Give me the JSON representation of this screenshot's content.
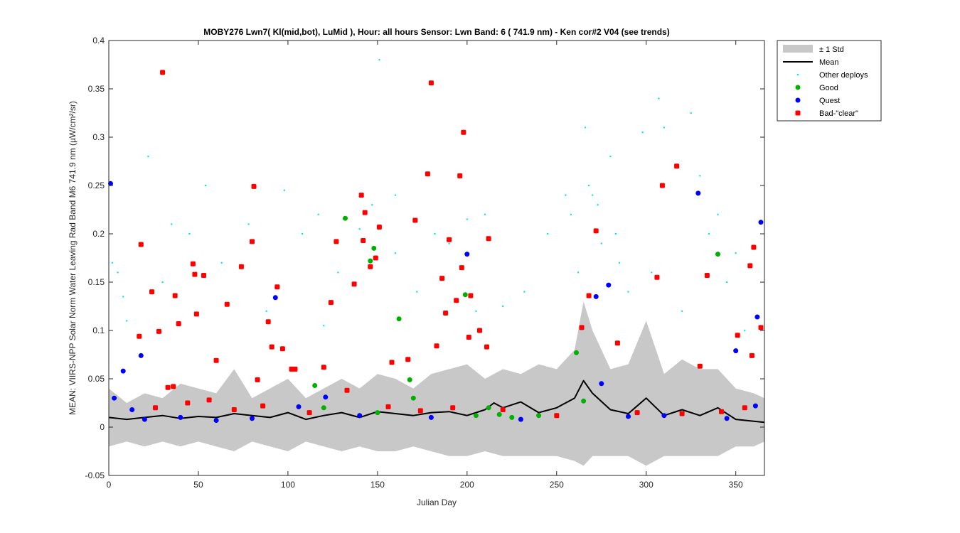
{
  "chart_data": {
    "type": "scatter",
    "title": "MOBY276   Lwn7( Kl(mid,bot), LuMid ),   Hour: all hours  Sensor: Lwn Band: 6 ( 741.9 nm)  - Ken cor#2 V04 (see trends)",
    "xlabel": "Julian Day",
    "ylabel": "MEAN: VIIRS-NPP Solar Norm Water Leaving Rad Band M6 741.9 nm (µW/cm²/sr)",
    "xlim": [
      0,
      366
    ],
    "ylim": [
      -0.05,
      0.4
    ],
    "xticks": [
      0,
      50,
      100,
      150,
      200,
      250,
      300,
      350
    ],
    "xtick_labels": [
      "0",
      "50",
      "100",
      "150",
      "200",
      "250",
      "300",
      "350"
    ],
    "yticks": [
      -0.05,
      0,
      0.05,
      0.1,
      0.15,
      0.2,
      0.25,
      0.3,
      0.35,
      0.4
    ],
    "ytick_labels": [
      "-0.05",
      "0",
      "0.05",
      "0.1",
      "0.15",
      "0.2",
      "0.25",
      "0.3",
      "0.35",
      "0.4"
    ],
    "legend_position": "outside-top-right",
    "legend": [
      "± 1 Std",
      "Mean",
      "Other deploys",
      "Good",
      "Quest",
      "Bad-\"clear\""
    ],
    "colors": {
      "std": "#c8c8c8",
      "mean": "#000000",
      "other": "#00e5e5",
      "good": "#00b000",
      "quest": "#0000ff",
      "bad": "#ff0000"
    },
    "series": [
      {
        "name": "± 1 Std",
        "kind": "band",
        "x": [
          0,
          10,
          20,
          30,
          40,
          50,
          60,
          70,
          80,
          90,
          100,
          110,
          120,
          130,
          140,
          150,
          160,
          170,
          180,
          190,
          200,
          210,
          220,
          230,
          240,
          250,
          260,
          265,
          270,
          280,
          290,
          300,
          310,
          320,
          330,
          340,
          350,
          360,
          366
        ],
        "upper": [
          0.04,
          0.025,
          0.035,
          0.03,
          0.045,
          0.04,
          0.035,
          0.06,
          0.03,
          0.04,
          0.05,
          0.03,
          0.04,
          0.05,
          0.04,
          0.055,
          0.05,
          0.04,
          0.055,
          0.06,
          0.065,
          0.05,
          0.06,
          0.055,
          0.065,
          0.06,
          0.08,
          0.13,
          0.1,
          0.06,
          0.065,
          0.11,
          0.055,
          0.07,
          0.06,
          0.06,
          0.04,
          0.035,
          0.03
        ],
        "lower": [
          -0.02,
          -0.015,
          -0.02,
          -0.015,
          -0.02,
          -0.015,
          -0.02,
          -0.025,
          -0.015,
          -0.02,
          -0.025,
          -0.015,
          -0.02,
          -0.025,
          -0.02,
          -0.025,
          -0.025,
          -0.02,
          -0.025,
          -0.03,
          -0.03,
          -0.025,
          -0.03,
          -0.03,
          -0.03,
          -0.03,
          -0.035,
          -0.04,
          -0.03,
          -0.03,
          -0.03,
          -0.04,
          -0.03,
          -0.03,
          -0.03,
          -0.03,
          -0.02,
          -0.02,
          -0.015
        ]
      },
      {
        "name": "Mean",
        "kind": "line",
        "x": [
          0,
          10,
          20,
          30,
          40,
          50,
          60,
          70,
          80,
          90,
          100,
          110,
          120,
          130,
          140,
          150,
          160,
          170,
          180,
          190,
          200,
          210,
          215,
          220,
          230,
          240,
          250,
          260,
          265,
          270,
          280,
          290,
          300,
          310,
          320,
          330,
          340,
          350,
          360,
          366
        ],
        "y": [
          0.01,
          0.008,
          0.01,
          0.012,
          0.009,
          0.011,
          0.01,
          0.014,
          0.012,
          0.01,
          0.015,
          0.008,
          0.012,
          0.015,
          0.01,
          0.016,
          0.014,
          0.012,
          0.015,
          0.016,
          0.012,
          0.018,
          0.025,
          0.02,
          0.026,
          0.015,
          0.02,
          0.03,
          0.048,
          0.035,
          0.018,
          0.014,
          0.03,
          0.012,
          0.018,
          0.012,
          0.02,
          0.008,
          0.006,
          0.005
        ]
      },
      {
        "name": "Other deploys",
        "kind": "points",
        "x": [
          2,
          5,
          10,
          22,
          35,
          45,
          54,
          63,
          78,
          88,
          98,
          108,
          117,
          128,
          140,
          147,
          151,
          160,
          172,
          182,
          190,
          200,
          210,
          220,
          232,
          245,
          255,
          262,
          266,
          268,
          270,
          275,
          280,
          285,
          290,
          298,
          307,
          310,
          325,
          330,
          340,
          350,
          355,
          8,
          30,
          120,
          160,
          205,
          258,
          273,
          283,
          303,
          320,
          335,
          345
        ],
        "y": [
          0.17,
          0.16,
          0.11,
          0.28,
          0.21,
          0.2,
          0.25,
          0.17,
          0.21,
          0.12,
          0.245,
          0.2,
          0.22,
          0.16,
          0.205,
          0.23,
          0.38,
          0.24,
          0.14,
          0.2,
          0.19,
          0.215,
          0.22,
          0.125,
          0.14,
          0.2,
          0.24,
          0.16,
          0.31,
          0.25,
          0.24,
          0.19,
          0.28,
          0.17,
          0.14,
          0.305,
          0.34,
          0.31,
          0.325,
          0.26,
          0.22,
          0.18,
          0.1,
          0.135,
          0.15,
          0.105,
          0.18,
          0.12,
          0.22,
          0.23,
          0.2,
          0.16,
          0.12,
          0.2,
          0.15
        ]
      },
      {
        "name": "Good",
        "kind": "points",
        "x": [
          115,
          132,
          146,
          148,
          162,
          168,
          199,
          261,
          265,
          340,
          120,
          150,
          170,
          205,
          212,
          218,
          225,
          240
        ],
        "y": [
          0.043,
          0.216,
          0.172,
          0.185,
          0.112,
          0.049,
          0.137,
          0.077,
          0.027,
          0.179,
          0.02,
          0.015,
          0.03,
          0.012,
          0.02,
          0.013,
          0.01,
          0.012
        ]
      },
      {
        "name": "Quest",
        "kind": "points",
        "x": [
          1,
          3,
          8,
          13,
          18,
          93,
          106,
          121,
          200,
          272,
          275,
          279,
          329,
          350,
          361,
          362,
          364,
          20,
          40,
          60,
          80,
          140,
          180,
          230,
          290,
          310,
          345
        ],
        "y": [
          0.252,
          0.03,
          0.058,
          0.018,
          0.074,
          0.134,
          0.021,
          0.031,
          0.179,
          0.135,
          0.045,
          0.147,
          0.242,
          0.079,
          0.022,
          0.114,
          0.212,
          0.008,
          0.01,
          0.007,
          0.009,
          0.012,
          0.01,
          0.008,
          0.011,
          0.012,
          0.009
        ]
      },
      {
        "name": "Bad-\"clear\"",
        "kind": "points",
        "x": [
          17,
          18,
          24,
          28,
          30,
          33,
          36,
          37,
          39,
          47,
          48,
          49,
          53,
          60,
          66,
          74,
          80,
          81,
          83,
          89,
          91,
          94,
          97,
          102,
          104,
          120,
          124,
          127,
          133,
          137,
          141,
          142,
          143,
          146,
          149,
          151,
          158,
          167,
          171,
          178,
          180,
          183,
          186,
          188,
          190,
          194,
          196,
          197,
          198,
          201,
          202,
          207,
          211,
          212,
          264,
          268,
          272,
          284,
          306,
          309,
          317,
          330,
          334,
          351,
          358,
          359,
          360,
          364,
          26,
          44,
          56,
          70,
          86,
          112,
          156,
          174,
          192,
          220,
          250,
          295,
          320,
          342,
          355
        ],
        "y": [
          0.094,
          0.189,
          0.14,
          0.099,
          0.367,
          0.041,
          0.042,
          0.136,
          0.107,
          0.169,
          0.158,
          0.117,
          0.157,
          0.069,
          0.127,
          0.166,
          0.192,
          0.249,
          0.049,
          0.109,
          0.083,
          0.145,
          0.081,
          0.06,
          0.06,
          0.062,
          0.129,
          0.192,
          0.038,
          0.148,
          0.24,
          0.193,
          0.222,
          0.166,
          0.175,
          0.207,
          0.067,
          0.07,
          0.214,
          0.262,
          0.356,
          0.084,
          0.154,
          0.118,
          0.194,
          0.131,
          0.26,
          0.165,
          0.305,
          0.093,
          0.136,
          0.1,
          0.083,
          0.195,
          0.103,
          0.136,
          0.203,
          0.087,
          0.155,
          0.25,
          0.27,
          0.063,
          0.157,
          0.095,
          0.167,
          0.074,
          0.186,
          0.103,
          0.02,
          0.025,
          0.028,
          0.018,
          0.022,
          0.015,
          0.021,
          0.017,
          0.02,
          0.018,
          0.012,
          0.015,
          0.014,
          0.016,
          0.02
        ]
      }
    ]
  }
}
